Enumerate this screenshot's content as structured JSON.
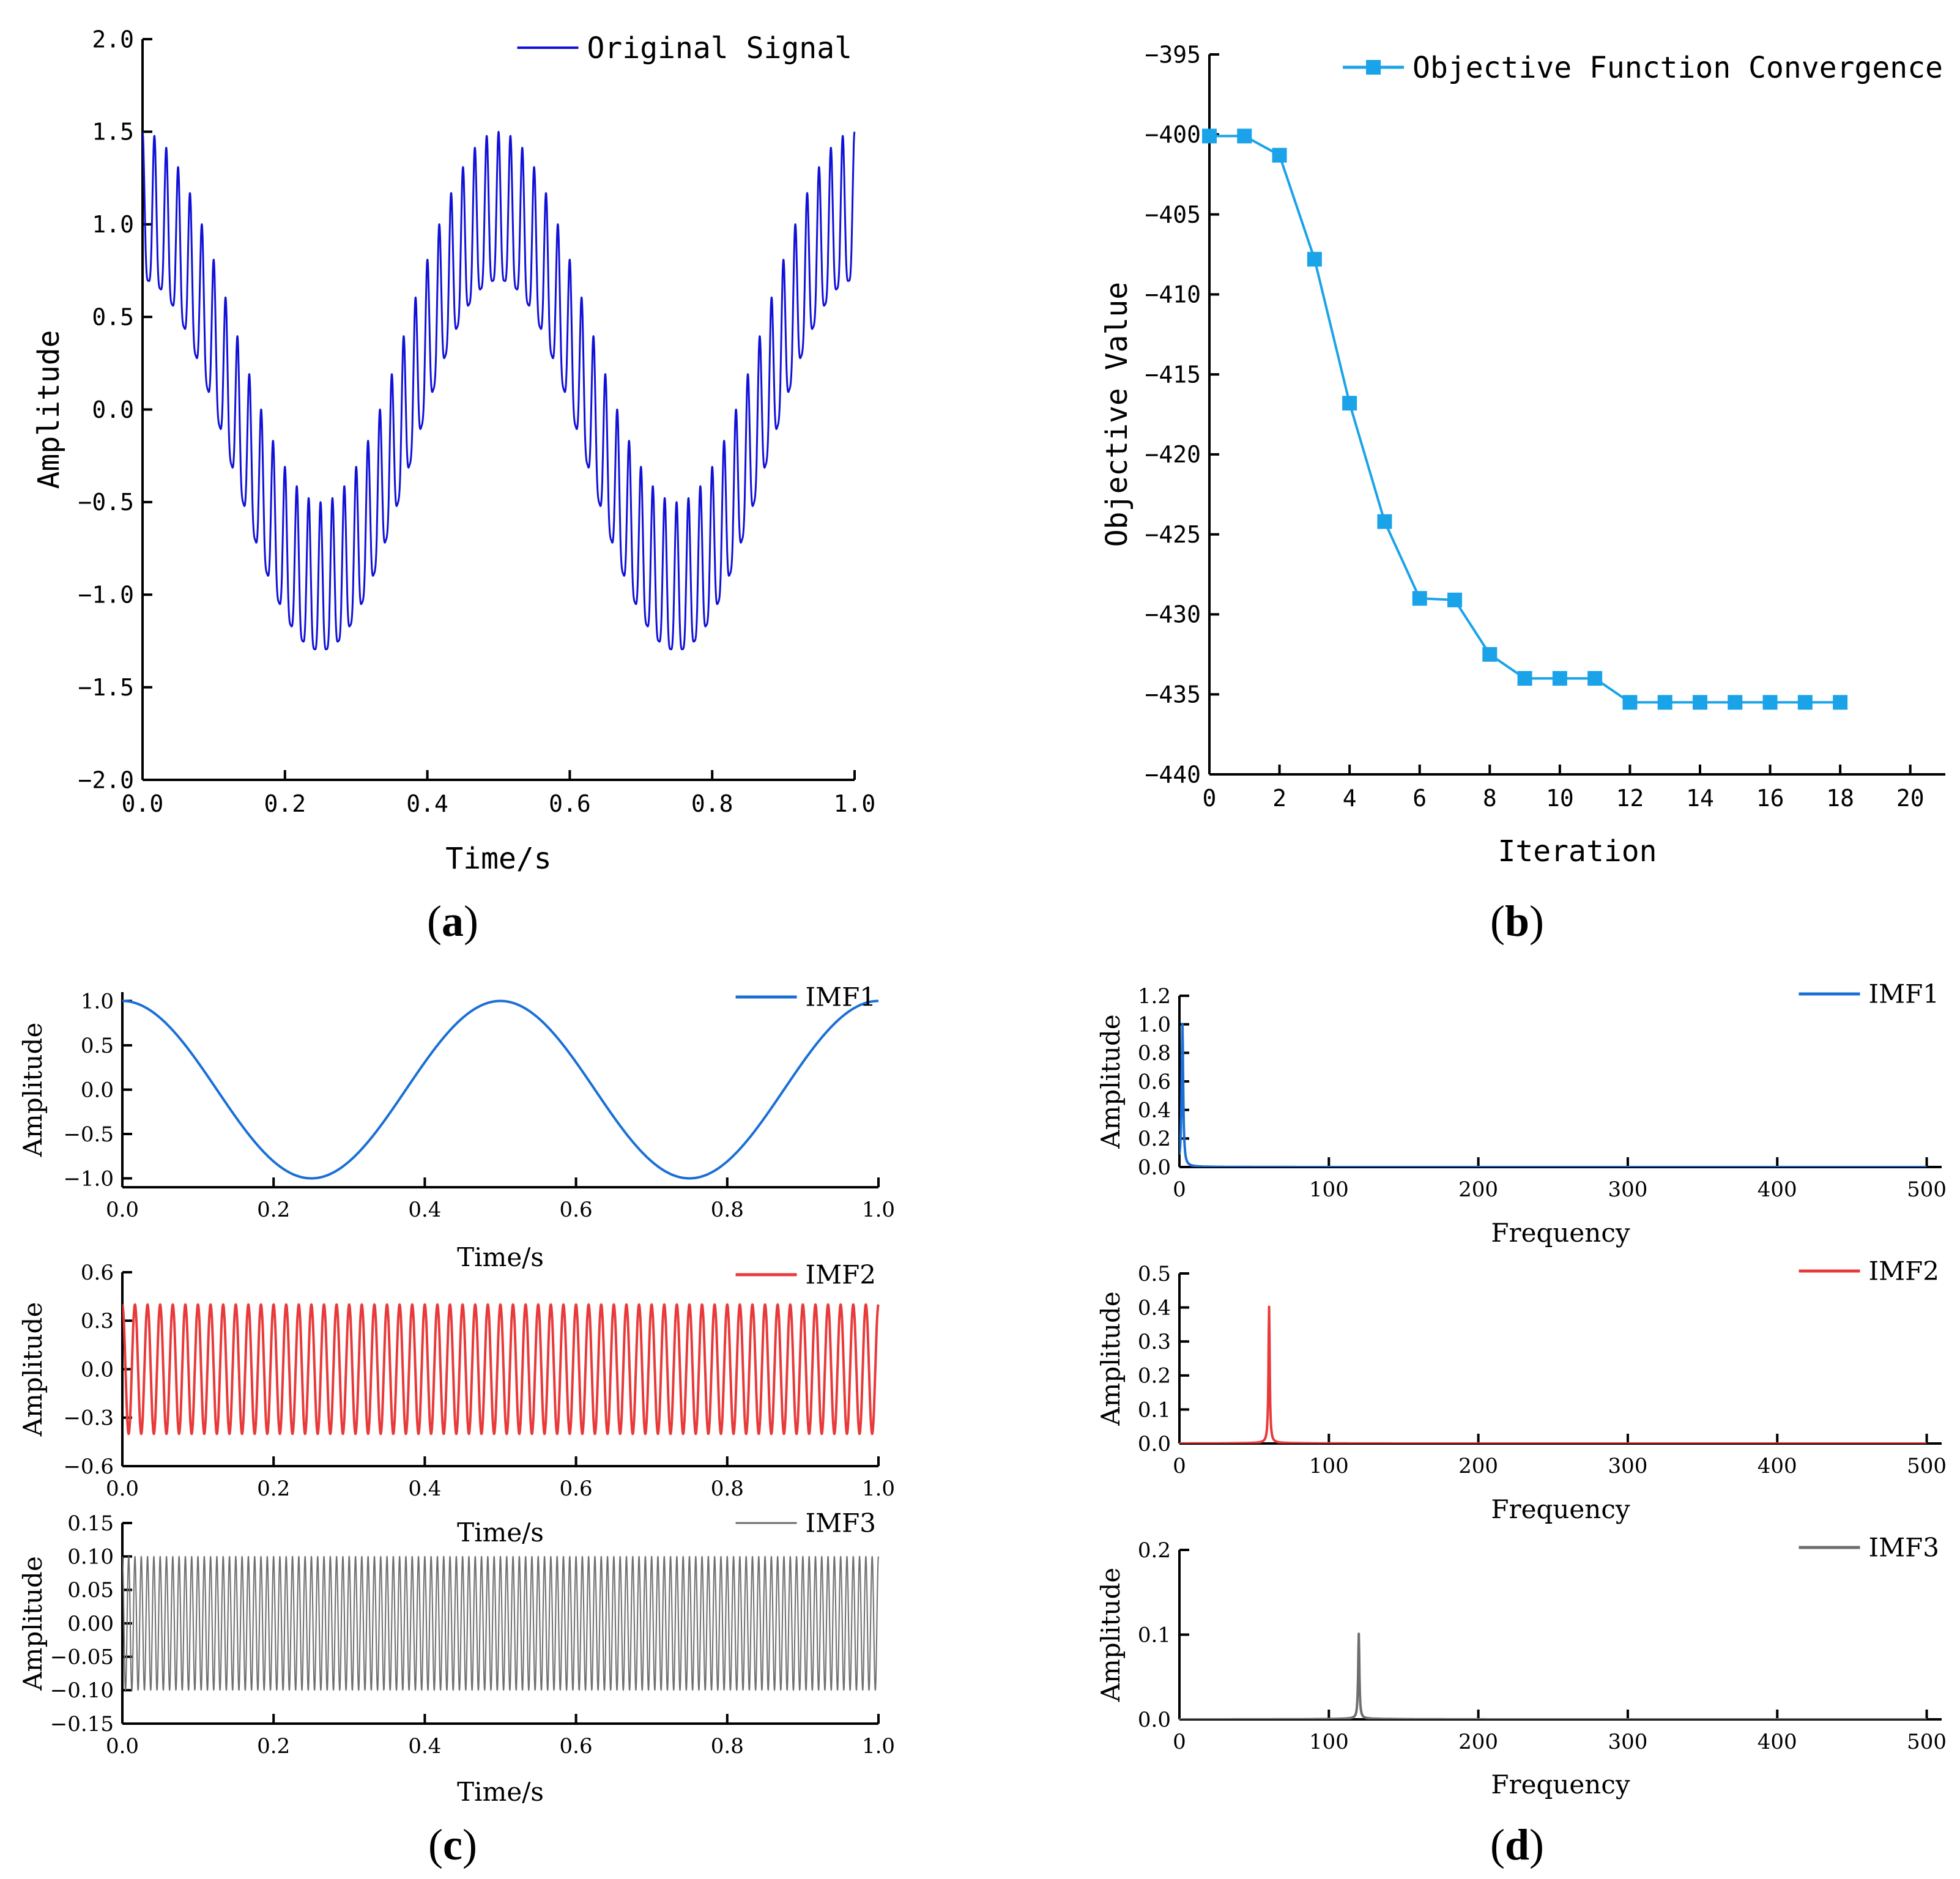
{
  "captions": {
    "a": "a",
    "b": "b",
    "c": "c",
    "d": "d"
  },
  "chart_data": [
    {
      "id": "a",
      "type": "line",
      "xlabel": "Time/s",
      "ylabel": "Amplitude",
      "xlim": [
        0,
        1.0
      ],
      "ylim": [
        -2.0,
        2.0
      ],
      "xticks": [
        "0.0",
        "0.2",
        "0.4",
        "0.6",
        "0.8",
        "1.0"
      ],
      "yticks": [
        "2.0",
        "1.5",
        "1.0",
        "0.5",
        "0.0",
        "-0.5",
        "-1.0",
        "-1.5",
        "-2.0"
      ],
      "legend": "top-right",
      "series": [
        {
          "name": "Original Signal",
          "color": "#1010d8",
          "formula": "y = cos(4*pi*t) + 0.4*cos(120*pi*t) + 0.1*cos(240*pi*t)",
          "t_range": [
            0,
            1.0
          ],
          "samples": 4000
        }
      ]
    },
    {
      "id": "b",
      "type": "line",
      "xlabel": "Iteration",
      "ylabel": "Objective Value",
      "xlim": [
        0,
        21
      ],
      "ylim": [
        -440,
        -395
      ],
      "xticks": [
        "0",
        "2",
        "4",
        "6",
        "8",
        "10",
        "12",
        "14",
        "16",
        "18",
        "20"
      ],
      "yticks": [
        "-395",
        "-400",
        "-405",
        "-410",
        "-415",
        "-420",
        "-425",
        "-430",
        "-435",
        "-440"
      ],
      "legend": "top-right",
      "series": [
        {
          "name": "Objective Function Convergence",
          "color": "#1aa3e8",
          "marker": "square",
          "x": [
            0,
            1,
            2,
            3,
            4,
            5,
            6,
            7,
            8,
            9,
            10,
            11,
            12,
            13,
            14,
            15,
            16,
            17,
            18
          ],
          "values": [
            -400.1,
            -400.1,
            -401.3,
            -407.8,
            -416.8,
            -424.2,
            -429.0,
            -429.1,
            -432.5,
            -434.0,
            -434.0,
            -434.0,
            -435.5,
            -435.5,
            -435.5,
            -435.5,
            -435.5,
            -435.5,
            -435.5
          ]
        }
      ]
    },
    {
      "id": "c1",
      "type": "line",
      "xlabel": "Time/s",
      "ylabel": "Amplitude",
      "xlim": [
        0,
        1.0
      ],
      "ylim": [
        -1.1,
        1.1
      ],
      "xticks": [
        "0.0",
        "0.2",
        "0.4",
        "0.6",
        "0.8",
        "1.0"
      ],
      "yticks": [
        "1.0",
        "0.5",
        "0.0",
        "-0.5",
        "-1.0"
      ],
      "legend": "top-right",
      "series": [
        {
          "name": "IMF1",
          "color": "#1a6fd6",
          "formula": "y = cos(4*pi*t)",
          "t_range": [
            0,
            1.0
          ],
          "samples": 1000
        }
      ]
    },
    {
      "id": "c2",
      "type": "line",
      "xlabel": "Time/s",
      "ylabel": "Amplitude",
      "xlim": [
        0,
        1.0
      ],
      "ylim": [
        -0.6,
        0.6
      ],
      "xticks": [
        "0.0",
        "0.2",
        "0.4",
        "0.6",
        "0.8",
        "1.0"
      ],
      "yticks": [
        "0.6",
        "0.3",
        "0.0",
        "-0.3",
        "-0.6"
      ],
      "legend": "top-right",
      "series": [
        {
          "name": "IMF2",
          "color": "#e83a3a",
          "formula": "y = 0.4*cos(120*pi*t)",
          "t_range": [
            0,
            1.0
          ],
          "samples": 3000
        }
      ]
    },
    {
      "id": "c3",
      "type": "line",
      "xlabel": "Time/s",
      "ylabel": "Amplitude",
      "xlim": [
        0,
        1.0
      ],
      "ylim": [
        -0.15,
        0.15
      ],
      "xticks": [
        "0.0",
        "0.2",
        "0.4",
        "0.6",
        "0.8",
        "1.0"
      ],
      "yticks": [
        "0.15",
        "0.10",
        "0.05",
        "0.00",
        "-0.05",
        "-0.10",
        "-0.15"
      ],
      "legend": "top-right",
      "series": [
        {
          "name": "IMF3",
          "color": "#6e6e6e",
          "formula": "y = 0.1*cos(240*pi*t)",
          "t_range": [
            0,
            1.0
          ],
          "samples": 4000
        }
      ]
    },
    {
      "id": "d1",
      "type": "line",
      "xlabel": "Frequency",
      "ylabel": "Amplitude",
      "xlim": [
        0,
        510
      ],
      "ylim": [
        0,
        1.2
      ],
      "xticks": [
        "0",
        "100",
        "200",
        "300",
        "400",
        "500"
      ],
      "yticks": [
        "1.2",
        "1.0",
        "0.8",
        "0.6",
        "0.4",
        "0.2",
        "0.0"
      ],
      "legend": "top-right",
      "series": [
        {
          "name": "IMF1",
          "color": "#1a6fd6",
          "peak_frequency": 2,
          "peak_amplitude": 1.0,
          "peak_width": 1.5,
          "baseline": 0.003
        }
      ]
    },
    {
      "id": "d2",
      "type": "line",
      "xlabel": "Frequency",
      "ylabel": "Amplitude",
      "xlim": [
        0,
        510
      ],
      "ylim": [
        0,
        0.5
      ],
      "xticks": [
        "0",
        "100",
        "200",
        "300",
        "400",
        "500"
      ],
      "yticks": [
        "0.5",
        "0.4",
        "0.3",
        "0.2",
        "0.1",
        "0.0"
      ],
      "legend": "top-right",
      "series": [
        {
          "name": "IMF2",
          "color": "#e83a3a",
          "peak_frequency": 60,
          "peak_amplitude": 0.4,
          "peak_width": 1.2,
          "baseline": 0.002
        }
      ]
    },
    {
      "id": "d3",
      "type": "line",
      "xlabel": "Frequency",
      "ylabel": "Amplitude",
      "xlim": [
        0,
        510
      ],
      "ylim": [
        0,
        0.2
      ],
      "xticks": [
        "0",
        "100",
        "200",
        "300",
        "400",
        "500"
      ],
      "yticks": [
        "0.2",
        "0.1",
        "0.0"
      ],
      "legend": "top-right",
      "series": [
        {
          "name": "IMF3",
          "color": "#6e6e6e",
          "peak_frequency": 120,
          "peak_amplitude": 0.1,
          "peak_width": 1.2,
          "baseline": 0.001
        }
      ]
    }
  ]
}
